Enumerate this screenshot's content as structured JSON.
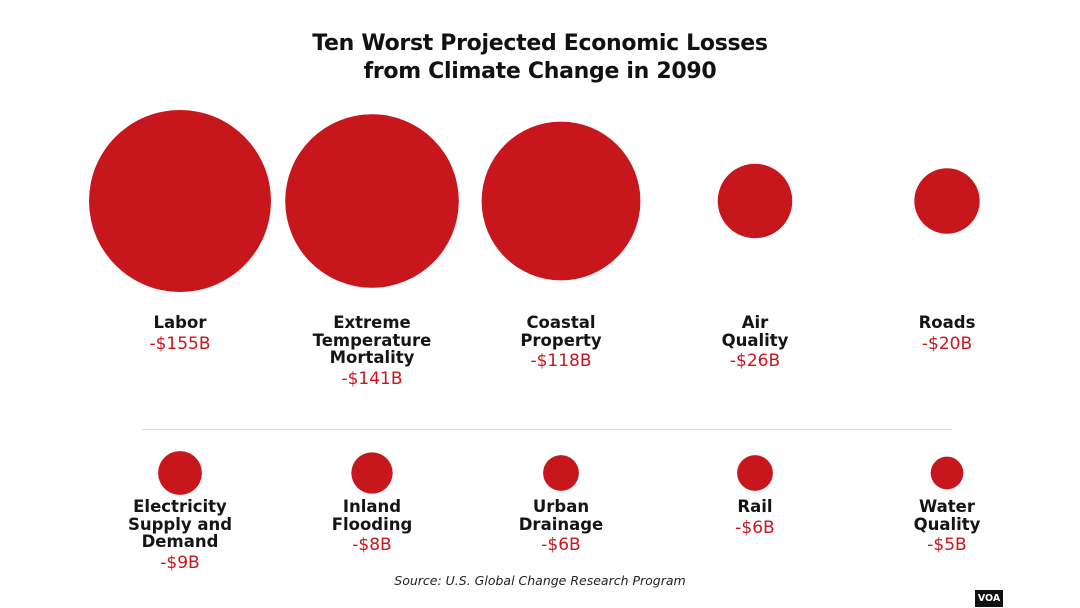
{
  "chart_data": {
    "type": "bubble",
    "title": "Ten Worst Projected Economic Losses\nfrom Climate Change in 2090",
    "items": [
      {
        "label": "Labor",
        "value": -155,
        "value_label": "-$155B"
      },
      {
        "label": "Extreme\nTemperature\nMortality",
        "value": -141,
        "value_label": "-$141B"
      },
      {
        "label": "Coastal\nProperty",
        "value": -118,
        "value_label": "-$118B"
      },
      {
        "label": "Air\nQuality",
        "value": -26,
        "value_label": "-$26B"
      },
      {
        "label": "Roads",
        "value": -20,
        "value_label": "-$20B"
      },
      {
        "label": "Electricity\nSupply and\nDemand",
        "value": -9,
        "value_label": "-$9B"
      },
      {
        "label": "Inland\nFlooding",
        "value": -8,
        "value_label": "-$8B"
      },
      {
        "label": "Urban\nDrainage",
        "value": -6,
        "value_label": "-$6B"
      },
      {
        "label": "Rail",
        "value": -6,
        "value_label": "-$6B"
      },
      {
        "label": "Water\nQuality",
        "value": -5,
        "value_label": "-$5B"
      }
    ],
    "source": "Source: U.S. Global Change Research Program",
    "bubble_color": "#c8161d",
    "value_color": "#c8161d"
  },
  "logo": "VOA"
}
